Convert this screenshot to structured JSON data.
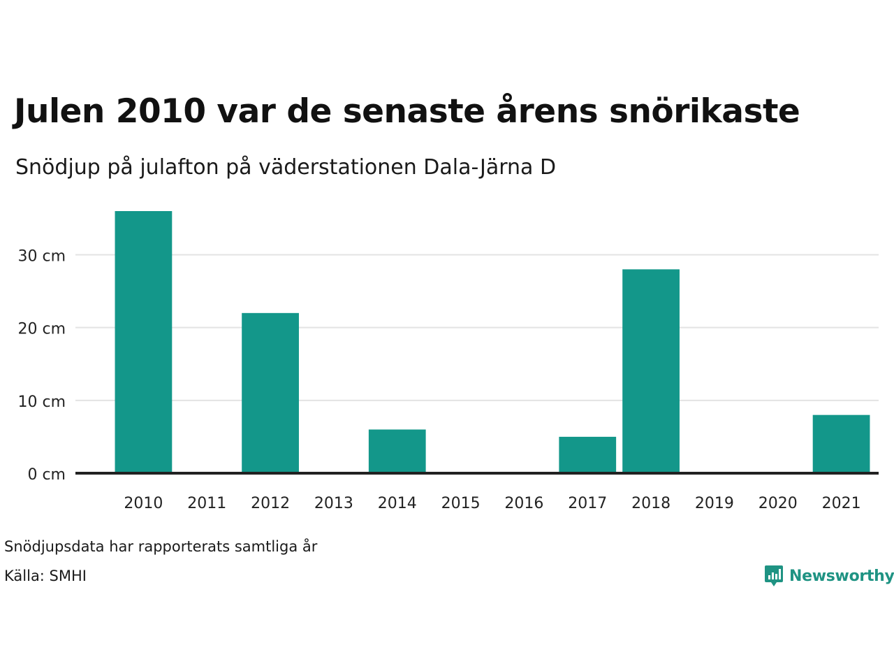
{
  "header": {
    "title": "Julen 2010 var de senaste årens snörikaste",
    "subtitle": "Snödjup på julafton på väderstationen Dala-Järna D"
  },
  "chart_data": {
    "type": "bar",
    "categories": [
      "2010",
      "2011",
      "2012",
      "2013",
      "2014",
      "2015",
      "2016",
      "2017",
      "2018",
      "2019",
      "2020",
      "2021"
    ],
    "values": [
      36,
      0,
      22,
      0,
      6,
      0,
      0,
      5,
      28,
      0,
      0,
      8
    ],
    "ylim": [
      0,
      36
    ],
    "yticks": [
      0,
      10,
      20,
      30
    ],
    "ytick_labels": [
      "0 cm",
      "10 cm",
      "20 cm",
      "30 cm"
    ],
    "grid": true,
    "bar_color": "#13978a",
    "grid_color": "#e3e3e3",
    "axis_color": "#222222"
  },
  "footer": {
    "note": "Snödjupsdata har rapporterats samtliga år",
    "source": "Källa: SMHI",
    "logo_text": "Newsworthy",
    "logo_icon": "bar-chart-speech-bubble-icon",
    "logo_color": "#1f9383"
  }
}
